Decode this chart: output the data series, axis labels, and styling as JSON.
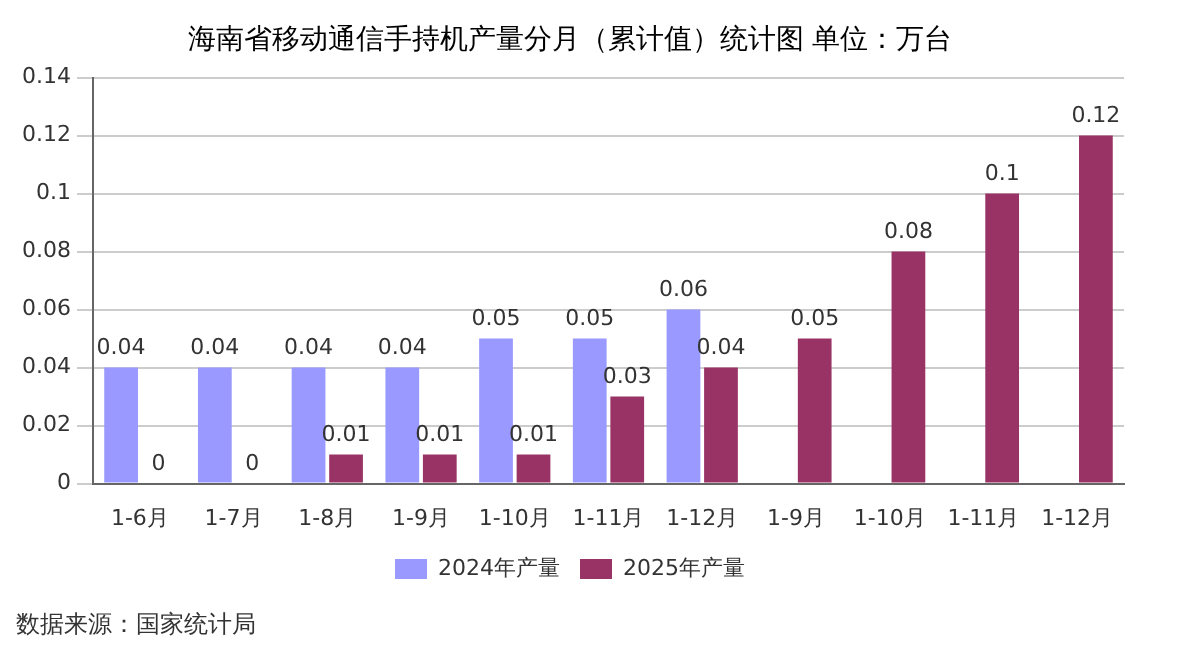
{
  "chart_data": {
    "type": "bar",
    "title": "海南省移动通信手持机产量分月（累计值）统计图 单位：万台",
    "categories": [
      "1-6月",
      "1-7月",
      "1-8月",
      "1-9月",
      "1-10月",
      "1-11月",
      "1-12月",
      "1-9月",
      "1-10月",
      "1-11月",
      "1-12月"
    ],
    "series": [
      {
        "name": "2024年产量",
        "color": "#9999ff",
        "values": [
          0.04,
          0.04,
          0.04,
          0.04,
          0.05,
          0.05,
          0.06,
          null,
          null,
          null,
          null
        ]
      },
      {
        "name": "2025年产量",
        "color": "#993366",
        "values": [
          0,
          0,
          0.01,
          0.01,
          0.01,
          0.03,
          0.04,
          0.05,
          0.08,
          0.1,
          0.12
        ]
      }
    ],
    "ylim": [
      0,
      0.14
    ],
    "yticks": [
      0,
      0.02,
      0.04,
      0.06,
      0.08,
      0.1,
      0.12,
      0.14
    ],
    "grid": "y",
    "legend": "bottom",
    "data_labels": true,
    "annotations": [
      "数据来源：国家统计局"
    ]
  }
}
